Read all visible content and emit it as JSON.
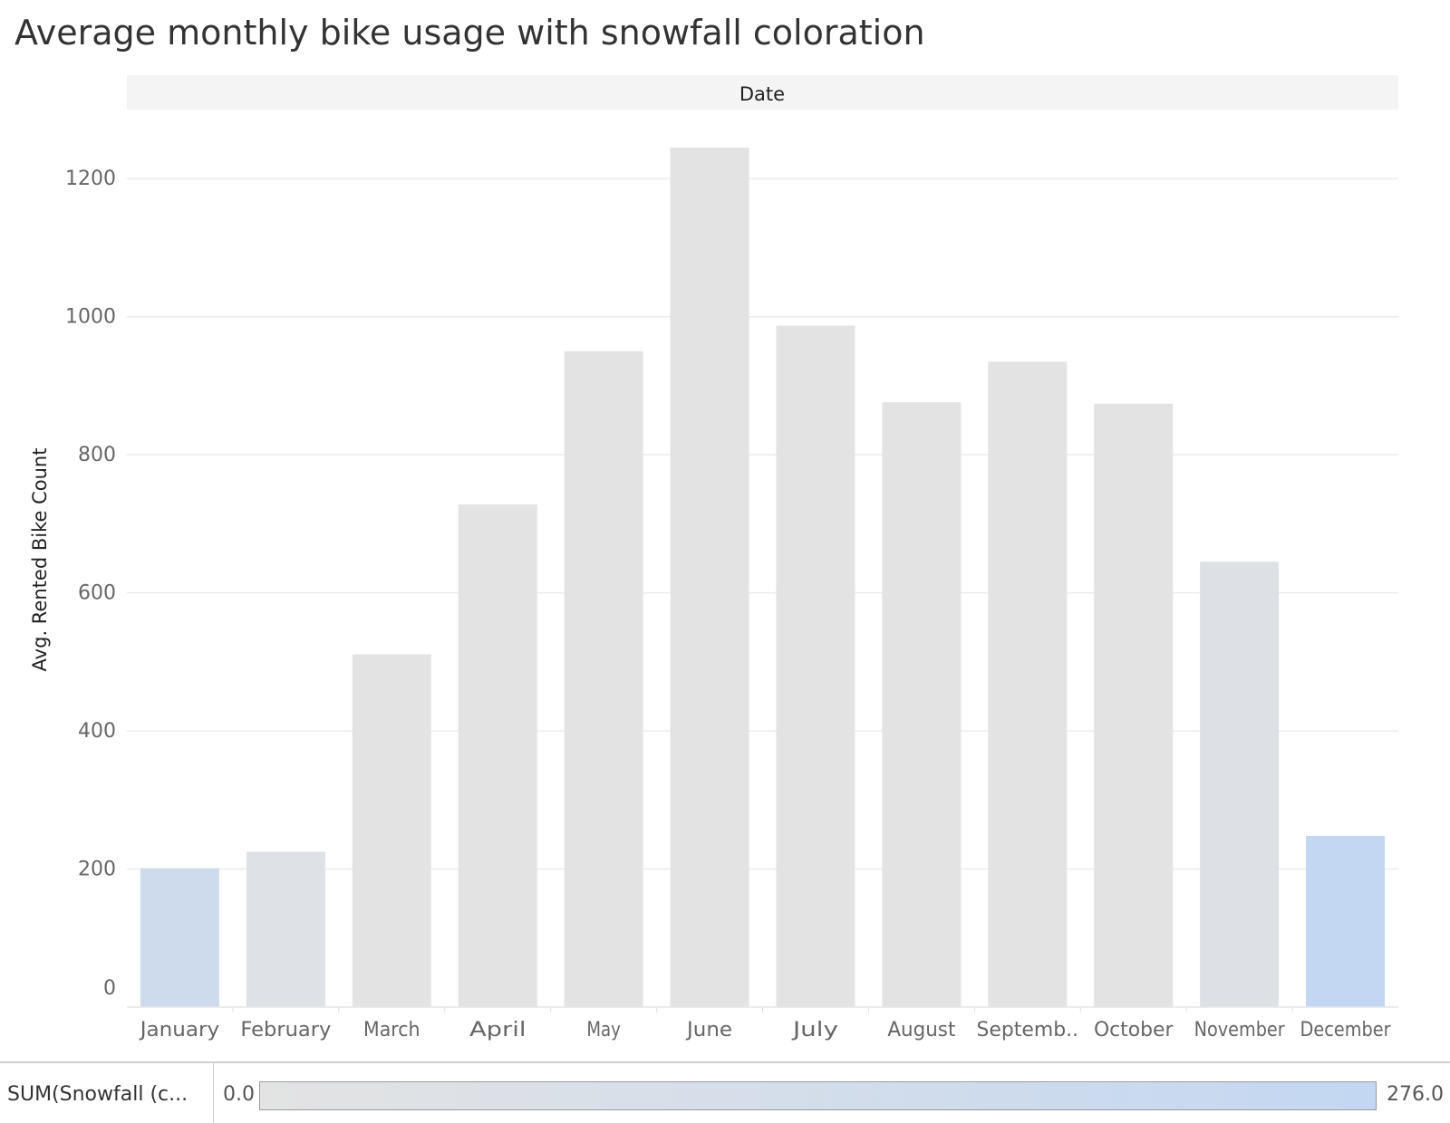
{
  "title": "Average monthly bike usage with snowfall coloration",
  "chart_data": {
    "type": "bar",
    "title": "Average monthly bike usage with snowfall coloration",
    "column_header": "Date",
    "ylabel": "Avg. Rented Bike Count",
    "xlabel": "",
    "ylim": [
      0,
      1300
    ],
    "yticks": [
      0,
      200,
      400,
      600,
      800,
      1000,
      1200
    ],
    "grid": true,
    "categories": [
      "January",
      "February",
      "March",
      "April",
      "May",
      "June",
      "July",
      "August",
      "Septemb..",
      "October",
      "November",
      "December"
    ],
    "values": [
      201,
      225,
      511,
      728,
      950,
      1245,
      987,
      876,
      935,
      874,
      645,
      248
    ],
    "snowfall": [
      180,
      40,
      0,
      0,
      0,
      0,
      0,
      0,
      0,
      0,
      55,
      276
    ],
    "color_legend": {
      "label": "SUM(Snowfall (c...",
      "min": 0.0,
      "max": 276.0,
      "min_label": "0.0",
      "max_label": "276.0",
      "color_low": "#e3e3e3",
      "color_high": "#c3d7f2"
    }
  }
}
